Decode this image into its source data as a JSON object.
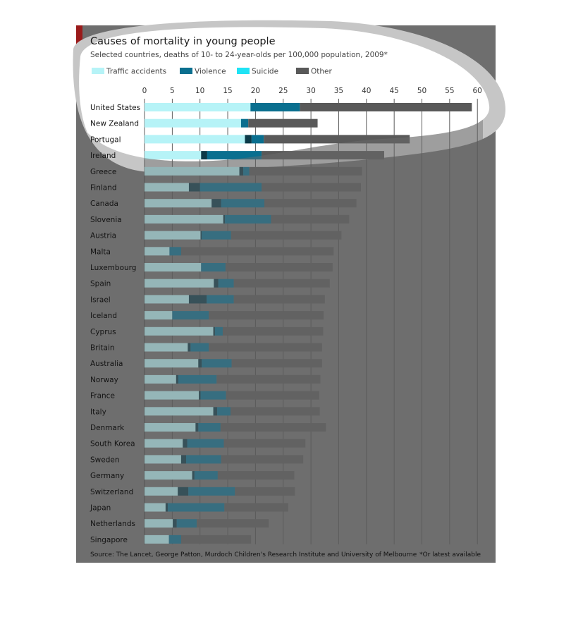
{
  "colors": {
    "traffic": "#b6f3f7",
    "violence": "#0a6f8f",
    "suicide": "#1fe3f5",
    "other": "#595959",
    "background": "#6e6e6e",
    "spotlight": "#ffffff",
    "halo": "#c6c6c6",
    "brand": "#9a1a1a"
  },
  "source_text": "Source: The Lancet, George Patton, Murdoch Children's Research Institute and University of Melbourne",
  "footnote": "*Or latest available",
  "chart_data": {
    "type": "bar",
    "orientation": "horizontal",
    "stacked": true,
    "title": "Causes of mortality in young people",
    "subtitle": "Selected countries, deaths of 10- to 24-year-olds per 100,000 population, 2009*",
    "xlim": [
      0,
      60
    ],
    "xticks": [
      0,
      5,
      10,
      15,
      20,
      25,
      30,
      35,
      40,
      45,
      50,
      55,
      60
    ],
    "grid": true,
    "legend_position": "top",
    "categories": [
      "United States",
      "New Zealand",
      "Portugal",
      "Ireland",
      "Greece",
      "Finland",
      "Canada",
      "Slovenia",
      "Austria",
      "Malta",
      "Luxembourg",
      "Spain",
      "Israel",
      "Iceland",
      "Cyprus",
      "Britain",
      "Australia",
      "Norway",
      "France",
      "Italy",
      "Denmark",
      "South Korea",
      "Sweden",
      "Germany",
      "Switzerland",
      "Japan",
      "Netherlands",
      "Singapore"
    ],
    "series": [
      {
        "name": "Traffic accidents",
        "values": [
          19.1,
          17.4,
          18.1,
          10.2,
          17.1,
          8.0,
          12.1,
          14.2,
          10.1,
          4.5,
          10.2,
          12.5,
          8.0,
          5.0,
          12.4,
          7.8,
          9.7,
          5.7,
          9.8,
          12.4,
          9.2,
          6.9,
          6.6,
          8.6,
          6.0,
          3.8,
          5.1,
          4.4
        ]
      },
      {
        "name": "Violence",
        "values": [
          0.0,
          0.0,
          1.2,
          1.1,
          0.7,
          2.0,
          1.7,
          0.3,
          0.2,
          0.0,
          0.0,
          0.8,
          3.2,
          0.0,
          0.3,
          0.5,
          0.6,
          0.4,
          0.3,
          0.7,
          0.5,
          0.8,
          0.9,
          0.4,
          1.9,
          0.4,
          0.7,
          0.0
        ]
      },
      {
        "name": "Suicide",
        "values": [
          8.9,
          1.3,
          2.2,
          9.8,
          1.1,
          11.1,
          7.8,
          8.3,
          5.3,
          2.1,
          4.4,
          2.8,
          4.9,
          6.6,
          1.4,
          3.3,
          5.4,
          6.9,
          4.6,
          2.4,
          4.0,
          6.6,
          6.3,
          4.2,
          8.4,
          10.2,
          3.6,
          2.2
        ]
      },
      {
        "name": "Other",
        "values": [
          31.0,
          12.5,
          26.3,
          22.1,
          20.3,
          17.9,
          16.6,
          14.1,
          19.9,
          27.5,
          19.3,
          17.3,
          16.4,
          20.7,
          18.1,
          20.4,
          16.3,
          18.7,
          16.8,
          16.1,
          19.0,
          14.7,
          14.8,
          13.8,
          10.8,
          11.5,
          13.0,
          12.6
        ]
      }
    ]
  }
}
